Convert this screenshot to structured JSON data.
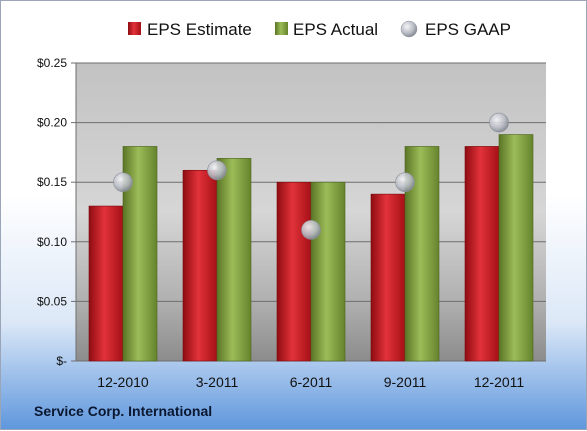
{
  "chart_data": {
    "type": "bar",
    "categories": [
      "12-2010",
      "3-2011",
      "6-2011",
      "9-2011",
      "12-2011"
    ],
    "series": [
      {
        "name": "EPS Estimate",
        "kind": "bar",
        "values": [
          0.13,
          0.16,
          0.15,
          0.14,
          0.18
        ]
      },
      {
        "name": "EPS Actual",
        "kind": "bar",
        "values": [
          0.18,
          0.17,
          0.15,
          0.18,
          0.19
        ]
      },
      {
        "name": "EPS GAAP",
        "kind": "marker",
        "values": [
          0.15,
          0.16,
          0.11,
          0.15,
          0.2
        ]
      }
    ],
    "ylim": [
      0,
      0.25
    ],
    "yticks": [
      0,
      0.05,
      0.1,
      0.15,
      0.2,
      0.25
    ],
    "ytick_labels": [
      "$-",
      "$0.05",
      "$0.10",
      "$0.15",
      "$0.20",
      "$0.25"
    ],
    "grid": true,
    "legend": "top",
    "footer": "Service Corp. International"
  },
  "colors": {
    "estimate": "#c0141c",
    "actual": "#7a9a3a",
    "gaap": "#b8bcc4"
  }
}
